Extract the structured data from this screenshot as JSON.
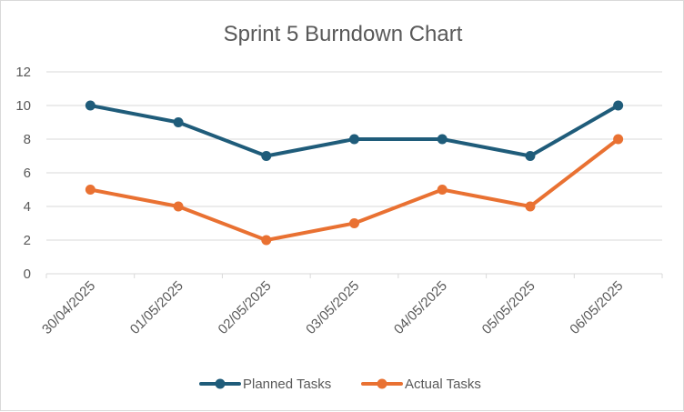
{
  "chart_data": {
    "type": "line",
    "title": "Sprint 5 Burndown Chart",
    "xlabel": "",
    "ylabel": "",
    "categories": [
      "30/04/2025",
      "01/05/2025",
      "02/05/2025",
      "03/05/2025",
      "04/05/2025",
      "05/05/2025",
      "06/05/2025"
    ],
    "ylim": [
      0,
      12
    ],
    "yticks": [
      0,
      2,
      4,
      6,
      8,
      10,
      12
    ],
    "grid": true,
    "legend": "bottom",
    "series": [
      {
        "name": "Planned Tasks",
        "color": "#1F5C7A",
        "values": [
          10,
          9,
          7,
          8,
          8,
          7,
          10
        ]
      },
      {
        "name": "Actual Tasks",
        "color": "#E97132",
        "values": [
          5,
          4,
          2,
          3,
          5,
          4,
          8
        ]
      }
    ]
  }
}
